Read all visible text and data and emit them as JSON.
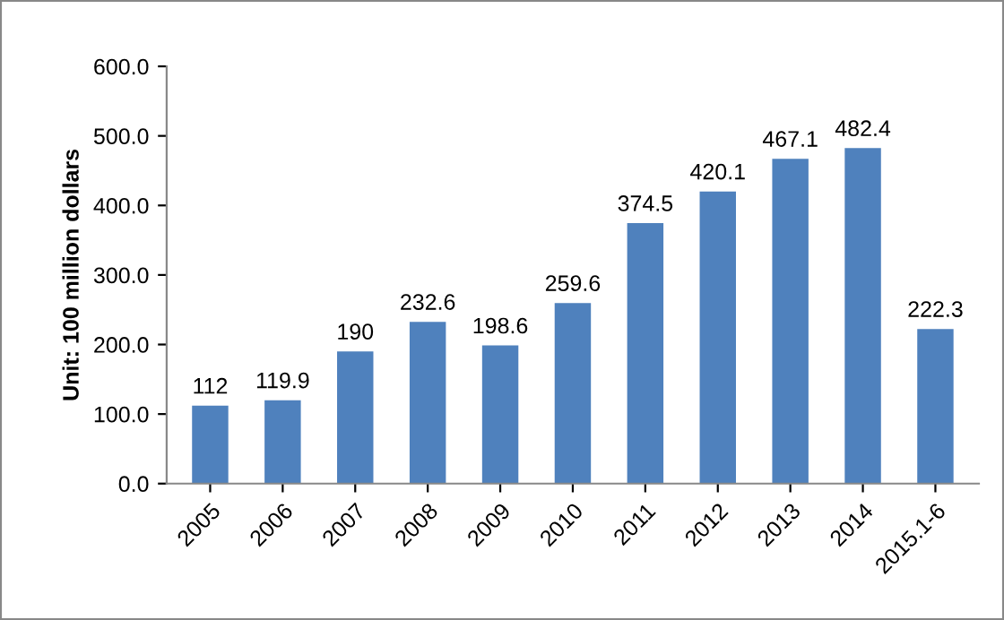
{
  "chart_data": {
    "type": "bar",
    "ylabel": "Unit: 100 million dollars",
    "categories": [
      "2005",
      "2006",
      "2007",
      "2008",
      "2009",
      "2010",
      "2011",
      "2012",
      "2013",
      "2014",
      "2015.1-6"
    ],
    "values": [
      112,
      119.9,
      190,
      232.6,
      198.6,
      259.6,
      374.5,
      420.1,
      467.1,
      482.4,
      222.3
    ],
    "color": "#4f81bd",
    "ylim": [
      0,
      600
    ],
    "yticks": [
      {
        "value": 0,
        "label": "0.0"
      },
      {
        "value": 100,
        "label": "100.0"
      },
      {
        "value": 200,
        "label": "200.0"
      },
      {
        "value": 300,
        "label": "300.0"
      },
      {
        "value": 400,
        "label": "400.0"
      },
      {
        "value": 500,
        "label": "500.0"
      },
      {
        "value": 600,
        "label": "600.0"
      }
    ],
    "grid": false,
    "data_labels": true
  }
}
